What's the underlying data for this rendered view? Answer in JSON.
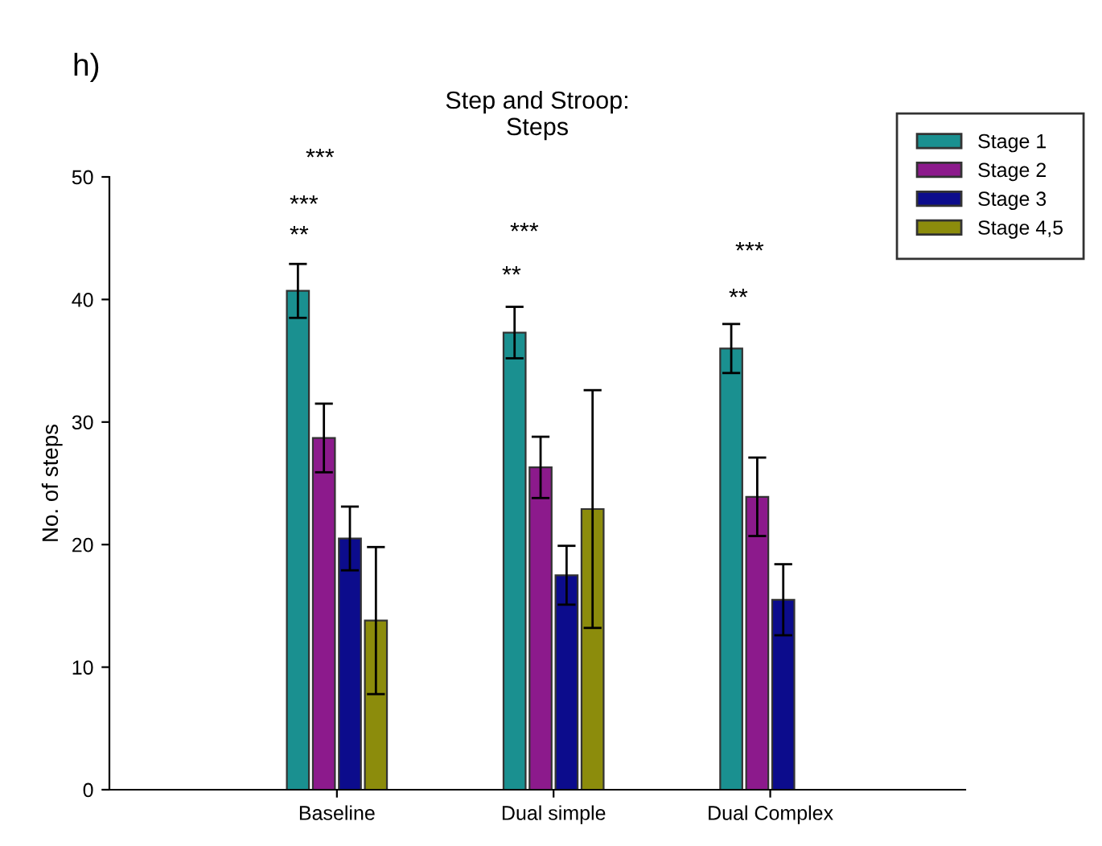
{
  "chart_data": {
    "type": "bar",
    "title": "Step and Stroop:\nSteps",
    "ylabel": "No. of steps",
    "categories": [
      "Baseline",
      "Dual simple",
      "Dual Complex"
    ],
    "series": [
      {
        "name": "Stage 1",
        "color": "#1a9090",
        "values": [
          40.7,
          37.3,
          36.0
        ],
        "errors": [
          2.2,
          2.1,
          2.0
        ]
      },
      {
        "name": "Stage 2",
        "color": "#8c1a8c",
        "values": [
          28.7,
          26.3,
          23.9
        ],
        "errors": [
          2.8,
          2.5,
          3.2
        ]
      },
      {
        "name": "Stage 3",
        "color": "#0c0c8c",
        "values": [
          20.5,
          17.5,
          15.5
        ],
        "errors": [
          2.6,
          2.4,
          2.9
        ]
      },
      {
        "name": "Stage 4,5",
        "color": "#8c8c0c",
        "values": [
          13.8,
          22.9,
          null
        ],
        "errors": [
          6.0,
          9.7,
          null
        ]
      }
    ],
    "ylim": [
      0,
      50
    ],
    "yticks": [
      0,
      10,
      20,
      30,
      40,
      50
    ],
    "grid": false,
    "legend": "top right",
    "annotations": [
      "h)",
      "**",
      "***",
      "***",
      "**",
      "***",
      "**",
      "***"
    ]
  }
}
